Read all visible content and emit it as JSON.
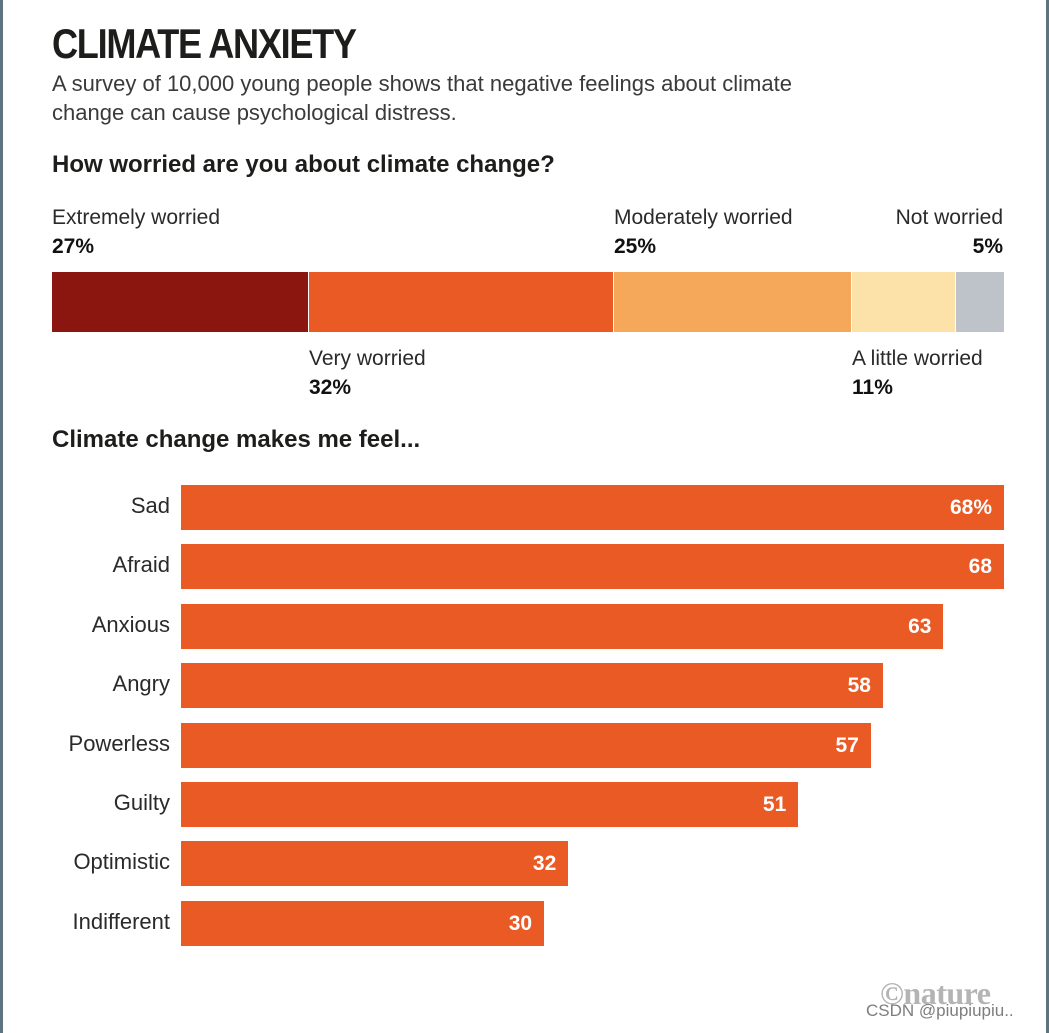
{
  "title": "CLIMATE ANXIETY",
  "subtitle": "A survey of 10,000 young people shows that negative feelings about climate change can cause psychological distress.",
  "question": "How worried are you about climate change?",
  "feel_title": "Climate change makes me feel...",
  "logo": "©nature",
  "watermark": "CSDN @piupiupiu..",
  "colors": {
    "extremely": "#8b1610",
    "very": "#e95a25",
    "moderately": "#f5a85a",
    "little": "#fce2a8",
    "not": "#bdc3c9",
    "bar": "#e95a25"
  },
  "chart_data": [
    {
      "type": "bar",
      "orientation": "stacked-horizontal",
      "title": "How worried are you about climate change?",
      "categories": [
        "Extremely worried",
        "Very worried",
        "Moderately worried",
        "A little worried",
        "Not worried"
      ],
      "values": [
        27,
        32,
        25,
        11,
        5
      ],
      "value_labels": [
        "27%",
        "32%",
        "25%",
        "11%",
        "5%"
      ],
      "unit": "%"
    },
    {
      "type": "bar",
      "orientation": "horizontal",
      "title": "Climate change makes me feel...",
      "categories": [
        "Sad",
        "Afraid",
        "Anxious",
        "Angry",
        "Powerless",
        "Guilty",
        "Optimistic",
        "Indifferent"
      ],
      "values": [
        68,
        68,
        63,
        58,
        57,
        51,
        32,
        30
      ],
      "value_labels": [
        "68%",
        "68",
        "63",
        "58",
        "57",
        "51",
        "32",
        "30"
      ],
      "xlim": [
        0,
        68
      ],
      "grid": false,
      "legend": "none"
    }
  ]
}
